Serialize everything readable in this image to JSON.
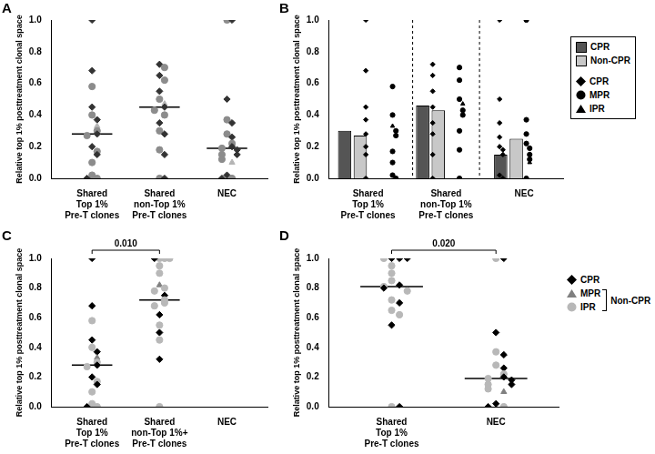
{
  "chart_data": [
    {
      "panel": "A",
      "type": "strip",
      "y_label": "Relative top 1% posttreatment clonal space",
      "categories": [
        [
          "Shared",
          "Top 1%",
          "Pre-T clones"
        ],
        [
          "Shared",
          "non-Top 1%",
          "Pre-T clones"
        ],
        [
          "NEC"
        ]
      ],
      "ylim": [
        0,
        1
      ],
      "yticks": [
        {
          "value": 0,
          "label": "0.0"
        },
        {
          "value": 0.2,
          "label": "0.2"
        },
        {
          "value": 0.4,
          "label": "0.4"
        },
        {
          "value": 0.6,
          "label": "0.6"
        },
        {
          "value": 0.8,
          "label": "0.8"
        },
        {
          "value": 1,
          "label": "1.0"
        }
      ],
      "marker_groups": [
        {
          "name": "CPR",
          "marker": "diamond",
          "color": "#333333"
        },
        {
          "name": "MPR",
          "marker": "circle",
          "color": "#8c8c8c"
        },
        {
          "name": "IPR",
          "marker": "triangle",
          "color": "#b4b4b4"
        }
      ],
      "points": [
        {
          "values": [
            1.0,
            0.68,
            0.58,
            0.45,
            0.4,
            0.37,
            0.33,
            0.3,
            0.28,
            0.27,
            0.2,
            0.17,
            0.15,
            0.1,
            0.02,
            0.0,
            0.0
          ],
          "groups": [
            "CPR",
            "CPR",
            "MPR",
            "CPR",
            "MPR",
            "CPR",
            "IPR",
            "MPR",
            "CPR",
            "MPR",
            "CPR",
            "MPR",
            "CPR",
            "MPR",
            "MPR",
            "MPR",
            "CPR"
          ]
        },
        {
          "values": [
            0.72,
            0.7,
            0.65,
            0.62,
            0.55,
            0.5,
            0.47,
            0.45,
            0.43,
            0.4,
            0.35,
            0.3,
            0.28,
            0.18,
            0.15,
            0.0,
            0.0
          ],
          "groups": [
            "CPR",
            "MPR",
            "CPR",
            "MPR",
            "CPR",
            "MPR",
            "IPR",
            "CPR",
            "MPR",
            "MPR",
            "CPR",
            "MPR",
            "CPR",
            "MPR",
            "CPR",
            "MPR",
            "CPR"
          ]
        },
        {
          "values": [
            1.0,
            1.0,
            0.5,
            0.37,
            0.35,
            0.28,
            0.26,
            0.22,
            0.2,
            0.19,
            0.18,
            0.15,
            0.15,
            0.12,
            0.1,
            0.02,
            0.0,
            0.0
          ],
          "groups": [
            "MPR",
            "CPR",
            "CPR",
            "MPR",
            "CPR",
            "MPR",
            "CPR",
            "MPR",
            "CPR",
            "MPR",
            "CPR",
            "MPR",
            "CPR",
            "MPR",
            "IPR",
            "CPR",
            "MPR",
            "CPR"
          ]
        }
      ],
      "medians": [
        0.28,
        0.45,
        0.19
      ]
    },
    {
      "panel": "B",
      "type": "bar",
      "legend": "right",
      "y_label": "Relative top 1% posttreatment clonal space",
      "categories": [
        [
          "Shared",
          "Top 1%",
          "Pre-T clones"
        ],
        [
          "Shared",
          "non-Top 1%",
          "Pre-T clones"
        ],
        [
          "NEC"
        ]
      ],
      "ylim": [
        0,
        1
      ],
      "yticks": [
        {
          "value": 0,
          "label": "0.0"
        },
        {
          "value": 0.2,
          "label": "0.2"
        },
        {
          "value": 0.4,
          "label": "0.4"
        },
        {
          "value": 0.6,
          "label": "0.6"
        },
        {
          "value": 0.8,
          "label": "0.8"
        },
        {
          "value": 1,
          "label": "1.0"
        }
      ],
      "marker_groups": [
        {
          "name": "CPR",
          "marker": "diamond",
          "color": "#000000"
        },
        {
          "name": "MPR",
          "marker": "circle",
          "color": "#000000"
        },
        {
          "name": "IPR",
          "marker": "triangle",
          "color": "#000000"
        }
      ],
      "series": [
        {
          "name": "CPR",
          "color": "#555555",
          "values": [
            0.3,
            0.46,
            0.15
          ],
          "points": [
            {
              "values": [
                1.0,
                0.68,
                0.45,
                0.37,
                0.28,
                0.2,
                0.15,
                0.0
              ],
              "groups": [
                "CPR",
                "CPR",
                "CPR",
                "CPR",
                "CPR",
                "CPR",
                "CPR",
                "CPR"
              ]
            },
            {
              "values": [
                0.72,
                0.65,
                0.55,
                0.45,
                0.35,
                0.28,
                0.15,
                0.0
              ],
              "groups": [
                "CPR",
                "CPR",
                "CPR",
                "CPR",
                "CPR",
                "CPR",
                "CPR",
                "CPR"
              ]
            },
            {
              "values": [
                1.0,
                0.5,
                0.35,
                0.26,
                0.2,
                0.18,
                0.15,
                0.02,
                0.0
              ],
              "groups": [
                "CPR",
                "CPR",
                "CPR",
                "CPR",
                "CPR",
                "CPR",
                "CPR",
                "CPR",
                "CPR"
              ]
            }
          ]
        },
        {
          "name": "Non-CPR",
          "color": "#c8c8c8",
          "values": [
            0.27,
            0.43,
            0.25
          ],
          "points": [
            {
              "values": [
                0.58,
                0.4,
                0.33,
                0.3,
                0.27,
                0.17,
                0.1,
                0.02,
                0.0
              ],
              "groups": [
                "MPR",
                "MPR",
                "IPR",
                "MPR",
                "MPR",
                "MPR",
                "MPR",
                "MPR",
                "MPR"
              ]
            },
            {
              "values": [
                0.7,
                0.62,
                0.5,
                0.47,
                0.43,
                0.4,
                0.3,
                0.18,
                0.0
              ],
              "groups": [
                "MPR",
                "MPR",
                "MPR",
                "IPR",
                "MPR",
                "MPR",
                "MPR",
                "MPR",
                "MPR"
              ]
            },
            {
              "values": [
                1.0,
                0.37,
                0.28,
                0.22,
                0.19,
                0.15,
                0.12,
                0.1,
                0.0
              ],
              "groups": [
                "MPR",
                "MPR",
                "MPR",
                "MPR",
                "MPR",
                "MPR",
                "MPR",
                "IPR",
                "MPR"
              ]
            }
          ]
        }
      ]
    },
    {
      "panel": "C",
      "type": "strip",
      "y_label": "Relative top 1% posttreatment clonal space",
      "categories": [
        [
          "Shared",
          "Top 1%",
          "Pre-T clones"
        ],
        [
          "Shared",
          "non-Top 1%+",
          "Pre-T clones"
        ],
        [
          "NEC"
        ]
      ],
      "ylim": [
        0,
        1
      ],
      "yticks": [
        {
          "value": 0,
          "label": "0.0"
        },
        {
          "value": 0.2,
          "label": "0.2"
        },
        {
          "value": 0.4,
          "label": "0.4"
        },
        {
          "value": 0.6,
          "label": "0.6"
        },
        {
          "value": 0.8,
          "label": "0.8"
        },
        {
          "value": 1,
          "label": "1.0"
        }
      ],
      "annotation": "0.010",
      "marker_groups": [
        {
          "name": "CPR",
          "marker": "diamond",
          "color": "#000000"
        },
        {
          "name": "MPR",
          "marker": "triangle",
          "color": "#808080"
        },
        {
          "name": "IPR",
          "marker": "circle",
          "color": "#b8b8b8"
        }
      ],
      "points": [
        {
          "values": [
            1.0,
            0.68,
            0.58,
            0.45,
            0.4,
            0.37,
            0.33,
            0.3,
            0.28,
            0.27,
            0.2,
            0.17,
            0.15,
            0.1,
            0.02,
            0.0,
            0.0
          ],
          "groups": [
            "CPR",
            "CPR",
            "IPR",
            "CPR",
            "IPR",
            "CPR",
            "MPR",
            "IPR",
            "CPR",
            "IPR",
            "CPR",
            "IPR",
            "CPR",
            "IPR",
            "IPR",
            "IPR",
            "CPR"
          ]
        },
        {
          "values": [
            1.0,
            1.0,
            1.0,
            1.0,
            0.95,
            0.9,
            0.82,
            0.8,
            0.78,
            0.75,
            0.72,
            0.7,
            0.68,
            0.62,
            0.55,
            0.5,
            0.45,
            0.32,
            0.0
          ],
          "groups": [
            "IPR",
            "IPR",
            "CPR",
            "IPR",
            "IPR",
            "IPR",
            "MPR",
            "IPR",
            "IPR",
            "CPR",
            "IPR",
            "IPR",
            "IPR",
            "CPR",
            "IPR",
            "CPR",
            "IPR",
            "CPR",
            "IPR"
          ]
        },
        {
          "values": [],
          "groups": []
        }
      ],
      "medians": [
        0.28,
        0.72,
        null
      ]
    },
    {
      "panel": "D",
      "type": "strip",
      "legend": "right",
      "y_label": "Relative top 1% posttreatment clonal space",
      "categories": [
        [
          "Shared",
          "Top 1%",
          "Pre-T clones"
        ],
        [
          "NEC"
        ]
      ],
      "ylim": [
        0,
        1
      ],
      "yticks": [
        {
          "value": 0,
          "label": "0.0"
        },
        {
          "value": 0.2,
          "label": "0.2"
        },
        {
          "value": 0.4,
          "label": "0.4"
        },
        {
          "value": 0.6,
          "label": "0.6"
        },
        {
          "value": 0.8,
          "label": "0.8"
        },
        {
          "value": 1,
          "label": "1.0"
        }
      ],
      "annotation": "0.020",
      "marker_groups": [
        {
          "name": "CPR",
          "marker": "diamond",
          "color": "#000000"
        },
        {
          "name": "MPR",
          "marker": "triangle",
          "color": "#808080"
        },
        {
          "name": "IPR",
          "marker": "circle",
          "color": "#b8b8b8"
        }
      ],
      "legend_bracket": {
        "label": "Non-CPR",
        "groups": [
          "MPR",
          "IPR"
        ]
      },
      "points": [
        {
          "values": [
            1.0,
            1.0,
            1.0,
            1.0,
            0.95,
            0.9,
            0.85,
            0.82,
            0.81,
            0.8,
            0.78,
            0.72,
            0.7,
            0.65,
            0.62,
            0.55,
            0.0,
            0.0
          ],
          "groups": [
            "CPR",
            "CPR",
            "IPR",
            "CPR",
            "IPR",
            "IPR",
            "IPR",
            "CPR",
            "IPR",
            "CPR",
            "IPR",
            "IPR",
            "CPR",
            "IPR",
            "IPR",
            "CPR",
            "IPR",
            "CPR"
          ]
        },
        {
          "values": [
            1.0,
            1.0,
            0.5,
            0.37,
            0.35,
            0.28,
            0.26,
            0.22,
            0.2,
            0.19,
            0.18,
            0.15,
            0.15,
            0.12,
            0.1,
            0.02,
            0.0,
            0.0
          ],
          "groups": [
            "IPR",
            "CPR",
            "CPR",
            "IPR",
            "CPR",
            "IPR",
            "CPR",
            "IPR",
            "CPR",
            "IPR",
            "CPR",
            "IPR",
            "CPR",
            "IPR",
            "MPR",
            "CPR",
            "IPR",
            "CPR"
          ]
        }
      ],
      "medians": [
        0.81,
        0.19
      ]
    }
  ]
}
